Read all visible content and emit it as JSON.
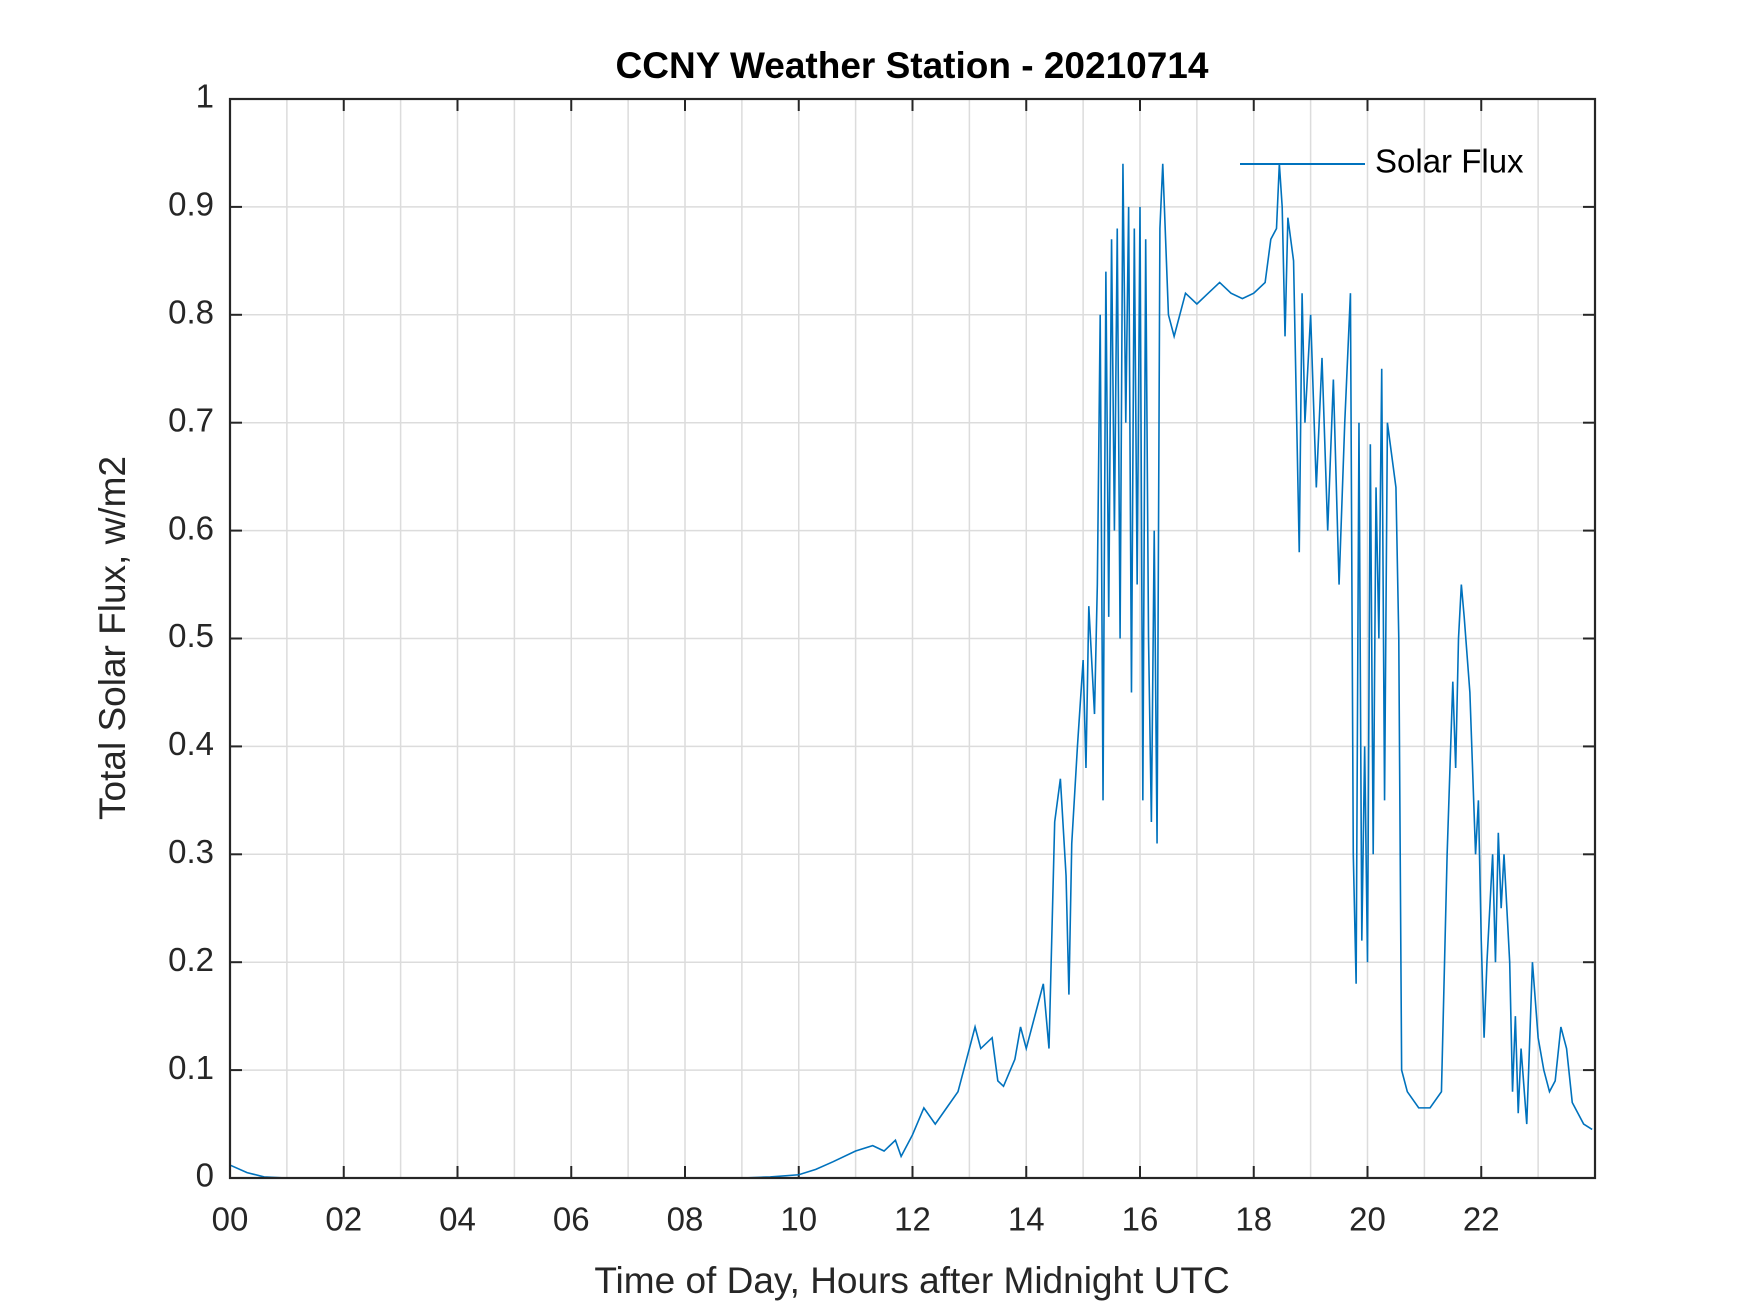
{
  "chart_data": {
    "type": "line",
    "title": "CCNY Weather Station - 20210714",
    "xlabel": "Time of Day, Hours after Midnight UTC",
    "ylabel": "Total Solar Flux, w/m2",
    "xlim": [
      0,
      24
    ],
    "ylim": [
      0,
      1
    ],
    "xticks": [
      {
        "value": 0,
        "label": "00"
      },
      {
        "value": 2,
        "label": "02"
      },
      {
        "value": 4,
        "label": "04"
      },
      {
        "value": 6,
        "label": "06"
      },
      {
        "value": 8,
        "label": "08"
      },
      {
        "value": 10,
        "label": "10"
      },
      {
        "value": 12,
        "label": "12"
      },
      {
        "value": 14,
        "label": "14"
      },
      {
        "value": 16,
        "label": "16"
      },
      {
        "value": 18,
        "label": "18"
      },
      {
        "value": 20,
        "label": "20"
      },
      {
        "value": 22,
        "label": "22"
      }
    ],
    "yticks": [
      0,
      0.1,
      0.2,
      0.3,
      0.4,
      0.5,
      0.6,
      0.7,
      0.8,
      0.9,
      1
    ],
    "grid": true,
    "minor_grid": true,
    "legend": "upper right",
    "series": [
      {
        "name": "Solar Flux",
        "color": "#0072bd",
        "x": [
          0,
          0.3,
          0.6,
          1,
          2,
          3,
          4,
          5,
          6,
          7,
          8,
          9,
          9.5,
          10,
          10.3,
          10.6,
          11,
          11.3,
          11.5,
          11.7,
          11.8,
          12,
          12.2,
          12.4,
          12.6,
          12.8,
          13,
          13.1,
          13.2,
          13.4,
          13.5,
          13.6,
          13.8,
          13.9,
          14,
          14.2,
          14.3,
          14.4,
          14.5,
          14.6,
          14.7,
          14.75,
          14.8,
          14.9,
          15,
          15.05,
          15.1,
          15.2,
          15.25,
          15.3,
          15.35,
          15.4,
          15.45,
          15.5,
          15.55,
          15.6,
          15.65,
          15.7,
          15.75,
          15.8,
          15.85,
          15.9,
          15.95,
          16,
          16.05,
          16.1,
          16.15,
          16.2,
          16.25,
          16.3,
          16.35,
          16.4,
          16.5,
          16.6,
          16.8,
          17,
          17.2,
          17.4,
          17.6,
          17.8,
          18,
          18.2,
          18.3,
          18.4,
          18.45,
          18.5,
          18.55,
          18.6,
          18.7,
          18.8,
          18.85,
          18.9,
          19,
          19.1,
          19.2,
          19.3,
          19.4,
          19.5,
          19.6,
          19.7,
          19.75,
          19.8,
          19.85,
          19.9,
          19.95,
          20,
          20.05,
          20.1,
          20.15,
          20.2,
          20.25,
          20.3,
          20.35,
          20.4,
          20.5,
          20.55,
          20.6,
          20.7,
          20.9,
          21.1,
          21.3,
          21.4,
          21.5,
          21.55,
          21.6,
          21.65,
          21.7,
          21.8,
          21.9,
          21.95,
          22,
          22.05,
          22.1,
          22.2,
          22.25,
          22.3,
          22.35,
          22.4,
          22.5,
          22.55,
          22.6,
          22.65,
          22.7,
          22.8,
          22.9,
          23,
          23.1,
          23.2,
          23.3,
          23.4,
          23.5,
          23.6,
          23.7,
          23.8,
          23.95
        ],
        "values": [
          0.012,
          0.005,
          0.001,
          0,
          0,
          0,
          0,
          0,
          0,
          0,
          0,
          0,
          0.001,
          0.003,
          0.008,
          0.015,
          0.025,
          0.03,
          0.025,
          0.035,
          0.02,
          0.04,
          0.065,
          0.05,
          0.065,
          0.08,
          0.12,
          0.14,
          0.12,
          0.13,
          0.09,
          0.085,
          0.11,
          0.14,
          0.12,
          0.16,
          0.18,
          0.12,
          0.33,
          0.37,
          0.28,
          0.17,
          0.31,
          0.4,
          0.48,
          0.38,
          0.53,
          0.43,
          0.55,
          0.8,
          0.35,
          0.84,
          0.52,
          0.87,
          0.6,
          0.88,
          0.5,
          0.94,
          0.7,
          0.9,
          0.45,
          0.88,
          0.55,
          0.9,
          0.35,
          0.87,
          0.5,
          0.33,
          0.6,
          0.31,
          0.88,
          0.94,
          0.8,
          0.78,
          0.82,
          0.81,
          0.82,
          0.83,
          0.82,
          0.815,
          0.82,
          0.83,
          0.87,
          0.88,
          0.94,
          0.9,
          0.78,
          0.89,
          0.85,
          0.58,
          0.82,
          0.7,
          0.8,
          0.64,
          0.76,
          0.6,
          0.74,
          0.55,
          0.7,
          0.82,
          0.3,
          0.18,
          0.7,
          0.22,
          0.4,
          0.2,
          0.68,
          0.3,
          0.64,
          0.5,
          0.75,
          0.35,
          0.7,
          0.68,
          0.64,
          0.5,
          0.1,
          0.08,
          0.065,
          0.065,
          0.08,
          0.3,
          0.46,
          0.38,
          0.5,
          0.55,
          0.52,
          0.45,
          0.3,
          0.35,
          0.22,
          0.13,
          0.2,
          0.3,
          0.2,
          0.32,
          0.25,
          0.3,
          0.2,
          0.08,
          0.15,
          0.06,
          0.12,
          0.05,
          0.2,
          0.13,
          0.1,
          0.08,
          0.09,
          0.14,
          0.12,
          0.07,
          0.06,
          0.05,
          0.045
        ]
      }
    ]
  }
}
